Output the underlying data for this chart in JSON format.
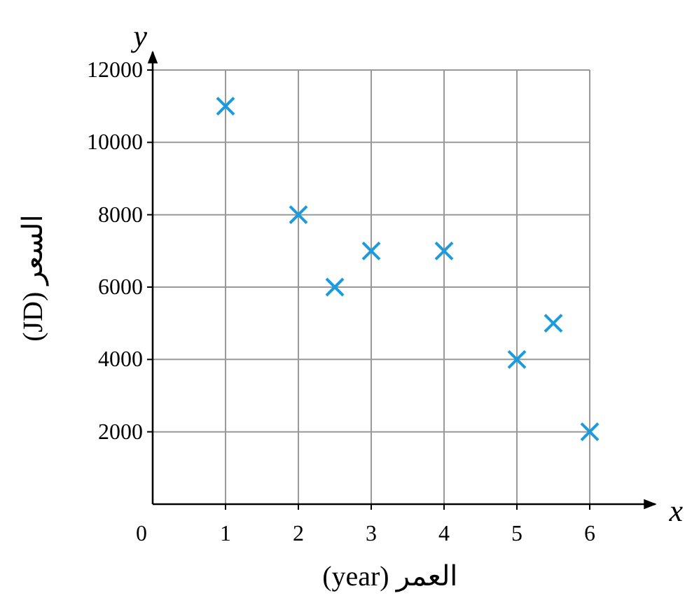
{
  "chart_data": {
    "type": "scatter",
    "xlabel": "العمر (year)",
    "ylabel": "السعر (JD)",
    "annotations": [
      "x",
      "y"
    ],
    "x": [
      1,
      2,
      2.5,
      3,
      4,
      5,
      5.5,
      6
    ],
    "series": [
      {
        "color": "#1a9be0",
        "values": [
          11000,
          8000,
          6000,
          7000,
          7000,
          4000,
          5000,
          2000
        ]
      }
    ],
    "xlim": [
      0,
      6.9
    ],
    "ylim": [
      0,
      12500
    ],
    "xticks": [
      0,
      1,
      2,
      3,
      4,
      5,
      6
    ],
    "yticks": [
      2000,
      4000,
      6000,
      8000,
      10000,
      12000
    ],
    "grid": true,
    "marker": "cross"
  }
}
